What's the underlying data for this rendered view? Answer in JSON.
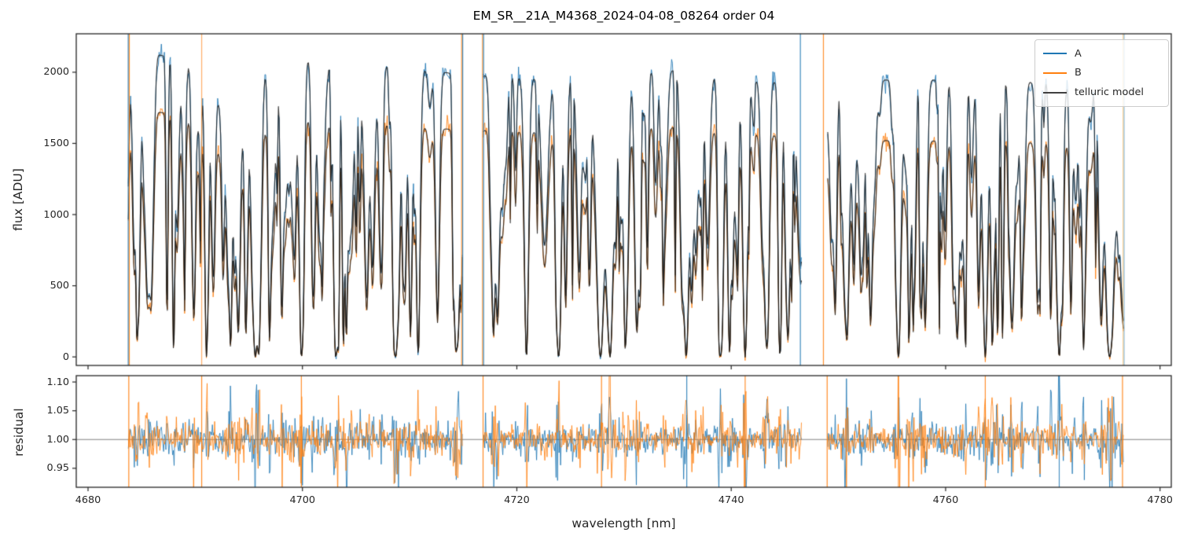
{
  "title": "EM_SR__21A_M4368_2024-04-08_08264  order 04",
  "legend": {
    "items": [
      {
        "label": "A",
        "color": "#1f77b4"
      },
      {
        "label": "B",
        "color": "#ff7f0e"
      },
      {
        "label": "telluric model",
        "color": "#404040"
      }
    ]
  },
  "chart_data": {
    "type": "line",
    "title": "EM_SR__21A_M4368_2024-04-08_08264  order 04",
    "xlabel": "wavelength [nm]",
    "xlim": [
      4678.9,
      4781.05
    ],
    "x_ticks": [
      4680,
      4700,
      4720,
      4740,
      4760,
      4780
    ],
    "x_tick_labels": [
      "4680",
      "4700",
      "4720",
      "4740",
      "4760",
      "4780"
    ],
    "grid": false,
    "legend_position": "upper right",
    "panels": [
      {
        "name": "flux",
        "ylabel": "flux [ADU]",
        "ylim": [
          -60,
          2270
        ],
        "y_ticks": [
          0,
          500,
          1000,
          1500,
          2000
        ],
        "y_tick_labels": [
          "0",
          "500",
          "1000",
          "1500",
          "2000"
        ]
      },
      {
        "name": "residual",
        "ylabel": "residual",
        "ylim": [
          0.917,
          1.111
        ],
        "y_ticks": [
          0.95,
          1.0,
          1.05,
          1.1
        ],
        "y_tick_labels": [
          "0.95",
          "1.00",
          "1.05",
          "1.10"
        ],
        "hline": 1.0,
        "hline_color": "#808080"
      }
    ],
    "series": [
      {
        "name": "A",
        "color": "#1f77b4",
        "alpha": 0.95,
        "lw": 0.9
      },
      {
        "name": "B",
        "color": "#ff7f0e",
        "alpha": 0.95,
        "lw": 0.9
      },
      {
        "name": "telluric model",
        "color": "#1a1a1a",
        "alpha": 0.85,
        "lw": 1.15
      }
    ],
    "chunks": [
      [
        4683.75,
        4714.95
      ],
      [
        4716.85,
        4746.6
      ],
      [
        4748.95,
        4776.6
      ]
    ],
    "sample_step": 0.07,
    "continuum_A": [
      [
        4683.8,
        2165
      ],
      [
        4685,
        2150
      ],
      [
        4687,
        2115
      ],
      [
        4689,
        2095
      ],
      [
        4691,
        2085
      ],
      [
        4693,
        2075
      ],
      [
        4695,
        2065
      ],
      [
        4697,
        2075
      ],
      [
        4699,
        2085
      ],
      [
        4701,
        2085
      ],
      [
        4703,
        2075
      ],
      [
        4705,
        2065
      ],
      [
        4707,
        2055
      ],
      [
        4709,
        2040
      ],
      [
        4711,
        2020
      ],
      [
        4713,
        2000
      ],
      [
        4715,
        1985
      ],
      [
        4717,
        1975
      ],
      [
        4719,
        1965
      ],
      [
        4721,
        1960
      ],
      [
        4723,
        1955
      ],
      [
        4725,
        1950
      ],
      [
        4727,
        1950
      ],
      [
        4729,
        1955
      ],
      [
        4731,
        1975
      ],
      [
        4733,
        2005
      ],
      [
        4735,
        2015
      ],
      [
        4737,
        1990
      ],
      [
        4739,
        1960
      ],
      [
        4741,
        1945
      ],
      [
        4743,
        1935
      ],
      [
        4745,
        1925
      ],
      [
        4747,
        1925
      ],
      [
        4749,
        1930
      ],
      [
        4751,
        1940
      ],
      [
        4753,
        1945
      ],
      [
        4755,
        1945
      ],
      [
        4757,
        1940
      ],
      [
        4759,
        1945
      ],
      [
        4761,
        1955
      ],
      [
        4763,
        1950
      ],
      [
        4765,
        1945
      ],
      [
        4767,
        1935
      ],
      [
        4769,
        1925
      ],
      [
        4771,
        1915
      ],
      [
        4773,
        1905
      ],
      [
        4775,
        1895
      ],
      [
        4777,
        1885
      ]
    ],
    "continuum_B": [
      [
        4683.8,
        1750
      ],
      [
        4686,
        1725
      ],
      [
        4688,
        1705
      ],
      [
        4690,
        1690
      ],
      [
        4692,
        1675
      ],
      [
        4694,
        1662
      ],
      [
        4696,
        1655
      ],
      [
        4698,
        1660
      ],
      [
        4700,
        1662
      ],
      [
        4702,
        1658
      ],
      [
        4704,
        1650
      ],
      [
        4706,
        1642
      ],
      [
        4708,
        1632
      ],
      [
        4710,
        1620
      ],
      [
        4712,
        1608
      ],
      [
        4714,
        1598
      ],
      [
        4716,
        1592
      ],
      [
        4718,
        1588
      ],
      [
        4720,
        1585
      ],
      [
        4722,
        1582
      ],
      [
        4724,
        1578
      ],
      [
        4726,
        1576
      ],
      [
        4728,
        1578
      ],
      [
        4730,
        1588
      ],
      [
        4732,
        1605
      ],
      [
        4734,
        1615
      ],
      [
        4736,
        1605
      ],
      [
        4738,
        1588
      ],
      [
        4740,
        1575
      ],
      [
        4742,
        1565
      ],
      [
        4744,
        1555
      ],
      [
        4746,
        1548
      ],
      [
        4748,
        1540
      ],
      [
        4750,
        1528
      ],
      [
        4752,
        1522
      ],
      [
        4754,
        1520
      ],
      [
        4756,
        1518
      ],
      [
        4758,
        1515
      ],
      [
        4760,
        1518
      ],
      [
        4762,
        1520
      ],
      [
        4764,
        1518
      ],
      [
        4766,
        1512
      ],
      [
        4768,
        1505
      ],
      [
        4770,
        1498
      ],
      [
        4772,
        1492
      ],
      [
        4774,
        1488
      ],
      [
        4776,
        1482
      ]
    ],
    "telluric_major_lines": [
      [
        4691.05,
        1.0,
        0.16
      ],
      [
        4693.5,
        0.42,
        0.9
      ],
      [
        4695.6,
        1.0,
        0.33
      ],
      [
        4697.2,
        0.55,
        0.28
      ],
      [
        4698.4,
        0.5,
        0.2
      ],
      [
        4699.9,
        1.0,
        0.18
      ],
      [
        4701.6,
        0.6,
        0.2
      ],
      [
        4703.1,
        1.0,
        0.2
      ],
      [
        4704.6,
        0.55,
        0.18
      ],
      [
        4706.0,
        0.8,
        0.2
      ],
      [
        4707.3,
        0.6,
        0.18
      ],
      [
        4708.7,
        1.0,
        0.2
      ],
      [
        4710.8,
        0.95,
        0.18
      ],
      [
        4712.6,
        0.85,
        0.18
      ],
      [
        4714.5,
        0.9,
        0.22
      ],
      [
        4718.2,
        0.85,
        0.2
      ],
      [
        4720.9,
        1.0,
        0.2
      ],
      [
        4722.6,
        0.6,
        0.3
      ],
      [
        4723.9,
        1.0,
        0.2
      ],
      [
        4725.8,
        0.65,
        0.2
      ],
      [
        4727.8,
        1.0,
        0.38
      ],
      [
        4728.7,
        1.0,
        0.3
      ],
      [
        4731.2,
        0.85,
        0.2
      ],
      [
        4733.9,
        0.35,
        0.18
      ],
      [
        4735.8,
        1.0,
        0.26
      ],
      [
        4737.8,
        0.6,
        0.2
      ],
      [
        4739.1,
        0.85,
        0.2
      ],
      [
        4741.3,
        1.0,
        0.2
      ],
      [
        4743.3,
        0.8,
        0.18
      ],
      [
        4745.3,
        0.9,
        0.2
      ],
      [
        4746.4,
        0.6,
        0.25
      ],
      [
        4750.8,
        0.9,
        0.2
      ],
      [
        4753.0,
        0.85,
        0.18
      ],
      [
        4755.6,
        1.0,
        0.24
      ],
      [
        4758.1,
        0.85,
        0.18
      ],
      [
        4761.1,
        0.9,
        0.2
      ],
      [
        4763.7,
        1.0,
        0.24
      ],
      [
        4766.2,
        0.85,
        0.2
      ],
      [
        4768.6,
        0.8,
        0.18
      ],
      [
        4770.6,
        1.0,
        0.24
      ],
      [
        4772.9,
        0.85,
        0.2
      ],
      [
        4775.3,
        1.0,
        0.4
      ],
      [
        4776.9,
        0.9,
        0.7
      ]
    ],
    "micro_lines": {
      "seed": 20240408,
      "count": 280,
      "lambda_min": 4682.5,
      "lambda_max": 4778,
      "depth_base": 0.12,
      "depth_scale": 0.85,
      "depth_power": 1.7,
      "width_base": 0.05,
      "width_scale": 0.13
    },
    "noise": {
      "seed": 8264,
      "base": 13,
      "rel": 0.014,
      "spike_prob": 0.004,
      "spike_scale": 5
    },
    "residual_noise": {
      "sigma_base": 0.012,
      "line_boost": 0.055,
      "boost_power": 4,
      "spike_prob": 0.003,
      "spike_scale": 4
    },
    "edge_spikes_top": [
      {
        "x": 4683.75,
        "color": "#1f77b4",
        "alpha": 0.9
      },
      {
        "x": 4683.85,
        "color": "#ff7f0e",
        "alpha": 0.9
      },
      {
        "x": 4690.6,
        "color": "#ffa14e",
        "alpha": 0.85
      },
      {
        "x": 4714.85,
        "color": "#ff7f0e",
        "alpha": 0.8
      },
      {
        "x": 4714.95,
        "color": "#1f77b4",
        "alpha": 0.85
      },
      {
        "x": 4716.8,
        "color": "#ff7f0e",
        "alpha": 0.85
      },
      {
        "x": 4716.9,
        "color": "#1f77b4",
        "alpha": 0.85
      },
      {
        "x": 4746.45,
        "color": "#1f77b4",
        "alpha": 0.85
      },
      {
        "x": 4748.6,
        "color": "#ff7f0e",
        "alpha": 0.85
      },
      {
        "x": 4776.55,
        "color": "#ffb347",
        "alpha": 0.6
      },
      {
        "x": 4776.65,
        "color": "#1f77b4",
        "alpha": 0.5
      }
    ],
    "edge_spikes_residual": [
      {
        "x": 4683.8,
        "color": "#ff7f0e",
        "alpha": 0.9
      },
      {
        "x": 4690.6,
        "color": "#ff7f0e",
        "alpha": 0.9
      },
      {
        "x": 4699.9,
        "color": "#ff7f0e",
        "alpha": 0.85
      },
      {
        "x": 4716.85,
        "color": "#ff7f0e",
        "alpha": 0.9
      },
      {
        "x": 4727.9,
        "color": "#ff7f0e",
        "alpha": 0.9
      },
      {
        "x": 4735.85,
        "color": "#1f77b4",
        "alpha": 0.85
      },
      {
        "x": 4741.3,
        "color": "#ff7f0e",
        "alpha": 0.85
      },
      {
        "x": 4748.95,
        "color": "#ff7f0e",
        "alpha": 0.9
      },
      {
        "x": 4755.6,
        "color": "#ff7f0e",
        "alpha": 0.85
      },
      {
        "x": 4763.7,
        "color": "#ff7f0e",
        "alpha": 0.85
      },
      {
        "x": 4770.6,
        "color": "#1f77b4",
        "alpha": 0.8
      },
      {
        "x": 4776.5,
        "color": "#ff7f0e",
        "alpha": 0.9
      }
    ]
  }
}
